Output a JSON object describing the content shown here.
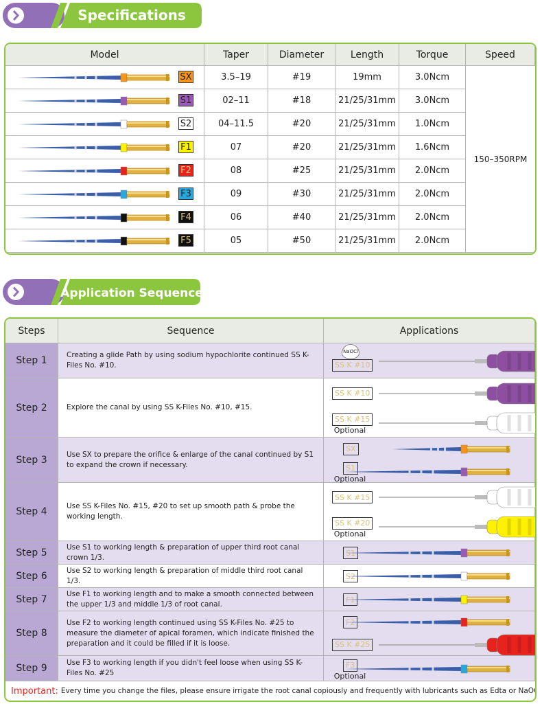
{
  "specifications": {
    "title": "Specifications",
    "headers": [
      "Model",
      "Taper",
      "Diameter",
      "Length",
      "Torque",
      "Speed"
    ],
    "speed": "150–350RPM",
    "rows": [
      {
        "model": "SX",
        "color": "#f7941d",
        "taper": "3.5–19",
        "diameter": "#19",
        "length": "19mm",
        "torque": "3.0Ncm"
      },
      {
        "model": "S1",
        "color": "#9b59b6",
        "taper": "02–11",
        "diameter": "#18",
        "length": "21/25/31mm",
        "torque": "3.0Ncm"
      },
      {
        "model": "S2",
        "color": "#ffffff",
        "taper": "04–11.5",
        "diameter": "#20",
        "length": "21/25/31mm",
        "torque": "1.0Ncm"
      },
      {
        "model": "F1",
        "color": "#fff200",
        "taper": "07",
        "diameter": "#20",
        "length": "21/25/31mm",
        "torque": "1.6Ncm"
      },
      {
        "model": "F2",
        "color": "#e8231e",
        "taper": "08",
        "diameter": "#25",
        "length": "21/25/31mm",
        "torque": "2.0Ncm"
      },
      {
        "model": "F3",
        "color": "#29a8e0",
        "taper": "09",
        "diameter": "#30",
        "length": "21/25/31mm",
        "torque": "2.0Ncm"
      },
      {
        "model": "F4",
        "color": "#111111",
        "taper": "06",
        "diameter": "#40",
        "length": "21/25/31mm",
        "torque": "2.0Ncm"
      },
      {
        "model": "F5",
        "color": "#111111",
        "taper": "05",
        "diameter": "#50",
        "length": "21/25/31mm",
        "torque": "2.0Ncm"
      }
    ]
  },
  "application_sequence": {
    "title": "Application Sequence",
    "headers": [
      "Steps",
      "Sequence",
      "Applications"
    ],
    "rows": [
      {
        "step": "Step 1",
        "sequence": "Creating a glide Path by using sodium hypochlorite continued SS K-Files No. #10.",
        "applications": [
          {
            "label": "SS K #10",
            "color": "#8e4fa0",
            "irrigant": "NaOCl"
          }
        ]
      },
      {
        "step": "Step 2",
        "sequence": "Explore the canal by using SS K-Files No. #10, #15.",
        "applications": [
          {
            "label": "SS K #10",
            "color": "#8e4fa0"
          },
          {
            "label": "SS K #15",
            "color": "#ffffff",
            "note": "Optional"
          }
        ]
      },
      {
        "step": "Step 3",
        "sequence": "Use SX to prepare the orifice & enlarge of the canal continued by S1 to expand the crown if necessary.",
        "applications": [
          {
            "label": "SX",
            "color": "#f7941d"
          },
          {
            "label": "S1",
            "color": "#9b59b6",
            "note": "Optional"
          }
        ]
      },
      {
        "step": "Step 4",
        "sequence": "Use SS K-Files No. #15, #20 to set up smooth path & probe the working length.",
        "applications": [
          {
            "label": "SS K #15",
            "color": "#ffffff"
          },
          {
            "label": "SS K #20",
            "color": "#fff200",
            "note": "Optional"
          }
        ]
      },
      {
        "step": "Step 5",
        "sequence": "Use S1 to working length & preparation of upper third root canal crown 1/3.",
        "applications": [
          {
            "label": "S1",
            "color": "#9b59b6"
          }
        ]
      },
      {
        "step": "Step 6",
        "sequence": "Use S2 to working length & preparation of middle third root canal 1/3.",
        "applications": [
          {
            "label": "S2",
            "color": "#ffffff"
          }
        ]
      },
      {
        "step": "Step 7",
        "sequence": "Use F1 to working length and to make a smooth connected between the upper 1/3 and middle 1/3 of root canal.",
        "applications": [
          {
            "label": "F1",
            "color": "#fff200"
          }
        ]
      },
      {
        "step": "Step 8",
        "sequence": "Use F2 to working length continued using SS K-Files No. #25 to measure the diameter of apical foramen, which indicate finished the preparation and it could be filled if it is loose.",
        "applications": [
          {
            "label": "F2",
            "color": "#e8231e"
          },
          {
            "label": "SS K #25",
            "color": "#e8231e"
          }
        ]
      },
      {
        "step": "Step 9",
        "sequence": "Use F3 to working length if you didn't feel loose when using SS K-Files No. #25",
        "applications": [
          {
            "label": "F3",
            "color": "#29a8e0",
            "note": "Optional"
          }
        ]
      }
    ]
  },
  "important": {
    "label": "Important:",
    "text": "Every time you change the files, please ensure irrigate the root canal copiously and frequently with lubricants such as Edta or NaOCl."
  }
}
